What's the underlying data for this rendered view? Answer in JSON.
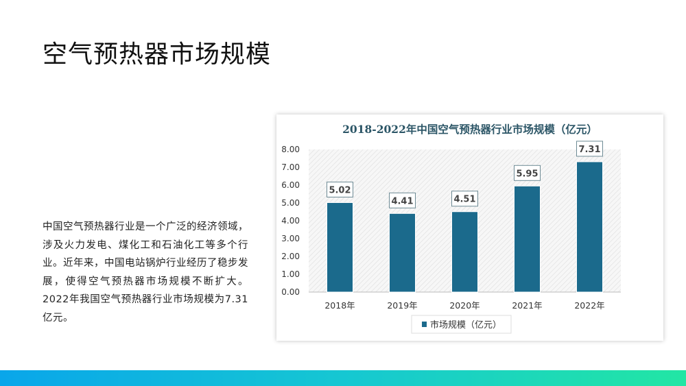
{
  "slide": {
    "title": "空气预热器市场规模",
    "body": "中国空气预热器行业是一个广泛的经济领域，涉及火力发电、煤化工和石油化工等多个行业。近年来，中国电站锅炉行业经历了稳步发展，使得空气预热器市场规模不断扩大。2022年我国空气预热器行业市场规模为7.31亿元。"
  },
  "chart_data": {
    "type": "bar",
    "title": "2018-2022年中国空气预热器行业市场规模（亿元）",
    "categories": [
      "2018年",
      "2019年",
      "2020年",
      "2021年",
      "2022年"
    ],
    "series": [
      {
        "name": "市场规模（亿元）",
        "values": [
          5.02,
          4.41,
          4.51,
          5.95,
          7.31
        ]
      }
    ],
    "data_labels": [
      "5.02",
      "4.41",
      "4.51",
      "5.95",
      "7.31"
    ],
    "yticks": [
      "0.00",
      "1.00",
      "2.00",
      "3.00",
      "4.00",
      "5.00",
      "6.00",
      "7.00",
      "8.00"
    ],
    "ylim": [
      0,
      8
    ],
    "xlabel": "",
    "ylabel": "",
    "legend": "bottom",
    "grid": false,
    "bar_color": "#1b6a8c",
    "title_color": "#2b5566"
  },
  "colors": {
    "footer_start": "#09a6ea",
    "footer_end": "#22e6a4"
  }
}
